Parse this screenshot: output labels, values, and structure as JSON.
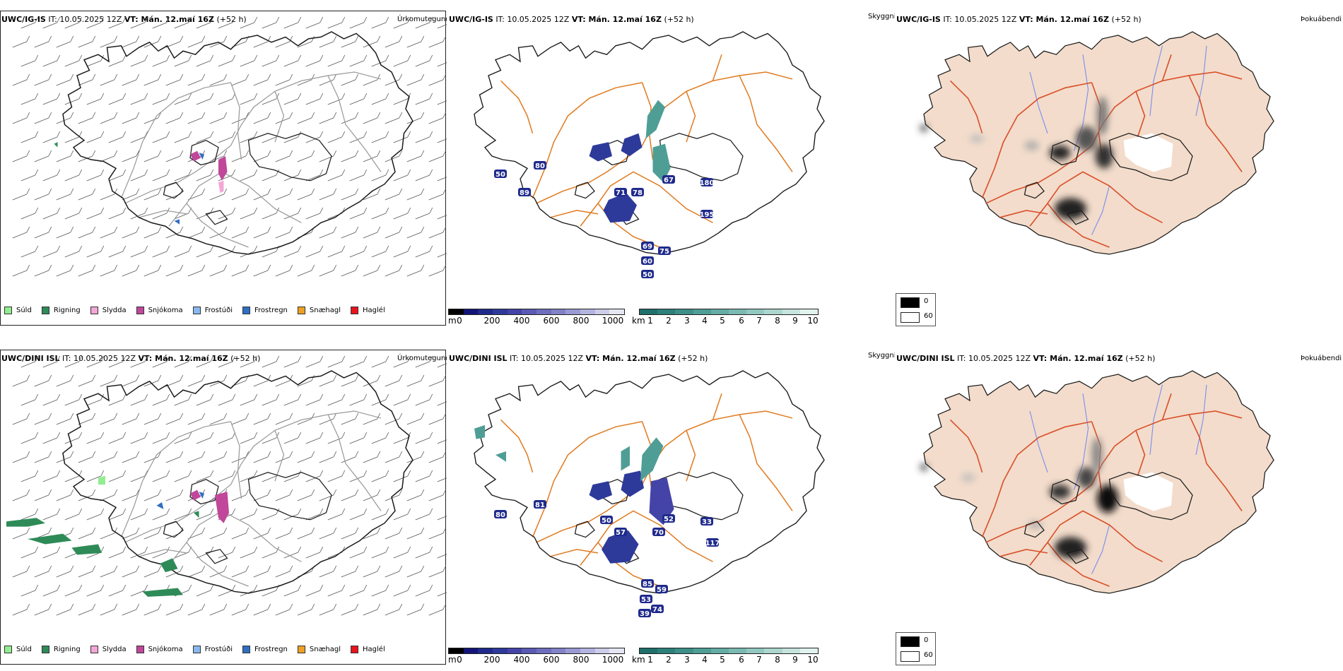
{
  "header": {
    "row0": {
      "model": "UWC/IG-IS",
      "it_prefix": "IT: 10.05.2025 12Z",
      "vt_label": "VT: Mán. 12.maí 16Z",
      "lead": "(+52 h)"
    },
    "row1": {
      "model": "UWC/DINI ISL",
      "it_prefix": "IT: 10.05.2025 12Z",
      "vt_label": "VT: Mán. 12.maí 16Z",
      "lead": "(+52 h)"
    }
  },
  "panel_titles": {
    "precip": "Úrkomutegund",
    "cloud": "Skyggni",
    "fog": "Þokuábendi"
  },
  "precip_legend": [
    {
      "label": "Súld",
      "color": "#90ee90"
    },
    {
      "label": "Rigning",
      "color": "#2e8b57"
    },
    {
      "label": "Slydda",
      "color": "#f4a6d7"
    },
    {
      "label": "Snjókoma",
      "color": "#c0479a"
    },
    {
      "label": "Frostúði",
      "color": "#87b9ee"
    },
    {
      "label": "Frostregn",
      "color": "#2f6fc4"
    },
    {
      "label": "Snæhagl",
      "color": "#f0a020"
    },
    {
      "label": "Haglél",
      "color": "#e8141c"
    }
  ],
  "colorbar_ceiling": {
    "unit": "m",
    "ticks": [
      "0",
      "200",
      "400",
      "600",
      "800",
      "1000"
    ],
    "colors": [
      "#000000",
      "#141478",
      "#1f2a8c",
      "#2e3a9a",
      "#4444a8",
      "#5a5ab4",
      "#6e6ebe",
      "#8282c8",
      "#9a9ad4",
      "#b4b4e0",
      "#cdcde9",
      "#e6e6f3"
    ]
  },
  "colorbar_visibility": {
    "unit": "km",
    "ticks": [
      "1",
      "2",
      "3",
      "4",
      "5",
      "6",
      "7",
      "8",
      "9",
      "10"
    ],
    "colors": [
      "#1f6f6a",
      "#2d807a",
      "#3d8f88",
      "#4f9e96",
      "#64aca4",
      "#7bbab2",
      "#93c8c0",
      "#acd6ce",
      "#c6e4dd",
      "#e2f2ee"
    ]
  },
  "fog_legend": [
    {
      "label": "0",
      "color": "#000000"
    },
    {
      "label": "60",
      "color": "#ffffff"
    }
  ],
  "cloud_labels": {
    "row0": [
      "71",
      "78",
      "67",
      "180",
      "195",
      "69",
      "75",
      "60",
      "50",
      "50",
      "80",
      "89"
    ],
    "row1": [
      "57",
      "50",
      "70",
      "52",
      "33",
      "117",
      "85",
      "59",
      "53",
      "74",
      "39",
      "80",
      "81"
    ]
  },
  "colors": {
    "coast": "#1a1a1a",
    "roads_orange": "#e07a1f",
    "roads_red": "#d9502a",
    "land_fog": "#f3dccb",
    "rivers": "#7a8ff0",
    "wind_barb": "#555555"
  }
}
